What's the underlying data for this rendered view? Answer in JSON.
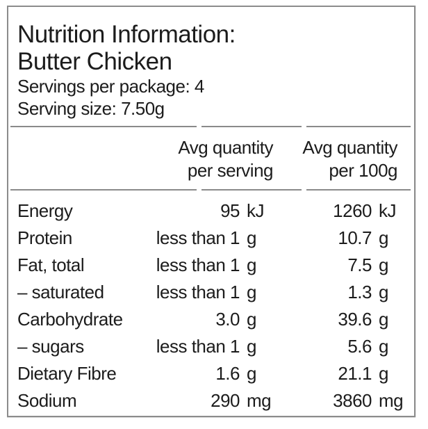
{
  "label": {
    "title_line1": "Nutrition Information:",
    "title_line2": "Butter Chicken",
    "servings_per_package": "Servings per package: 4",
    "serving_size": "Serving size: 7.50g",
    "columns": {
      "per_serving_line1": "Avg quantity",
      "per_serving_line2": "per serving",
      "per_100g_line1": "Avg quantity",
      "per_100g_line2": "per 100g"
    },
    "rows": [
      {
        "nutrient": "Energy",
        "serving_amount": "95",
        "serving_unit": "kJ",
        "per100_amount": "1260",
        "per100_unit": "kJ"
      },
      {
        "nutrient": "Protein",
        "serving_amount": "less than 1",
        "serving_unit": "g",
        "per100_amount": "10.7",
        "per100_unit": "g"
      },
      {
        "nutrient": "Fat, total",
        "serving_amount": "less than 1",
        "serving_unit": "g",
        "per100_amount": "7.5",
        "per100_unit": "g"
      },
      {
        "nutrient": "– saturated",
        "serving_amount": "less than 1",
        "serving_unit": "g",
        "per100_amount": "1.3",
        "per100_unit": "g"
      },
      {
        "nutrient": "Carbohydrate",
        "serving_amount": "3.0",
        "serving_unit": "g",
        "per100_amount": "39.6",
        "per100_unit": "g"
      },
      {
        "nutrient": "– sugars",
        "serving_amount": "less than 1",
        "serving_unit": "g",
        "per100_amount": "5.6",
        "per100_unit": "g"
      },
      {
        "nutrient": "Dietary Fibre",
        "serving_amount": "1.6",
        "serving_unit": "g",
        "per100_amount": "21.1",
        "per100_unit": "g"
      },
      {
        "nutrient": "Sodium",
        "serving_amount": "290",
        "serving_unit": "mg",
        "per100_amount": "3860",
        "per100_unit": "mg"
      }
    ]
  },
  "colors": {
    "text": "#1c1c1c",
    "rule_gray": "#8a8a8a",
    "border_gray": "#8c8c8c",
    "background": "#ffffff"
  }
}
